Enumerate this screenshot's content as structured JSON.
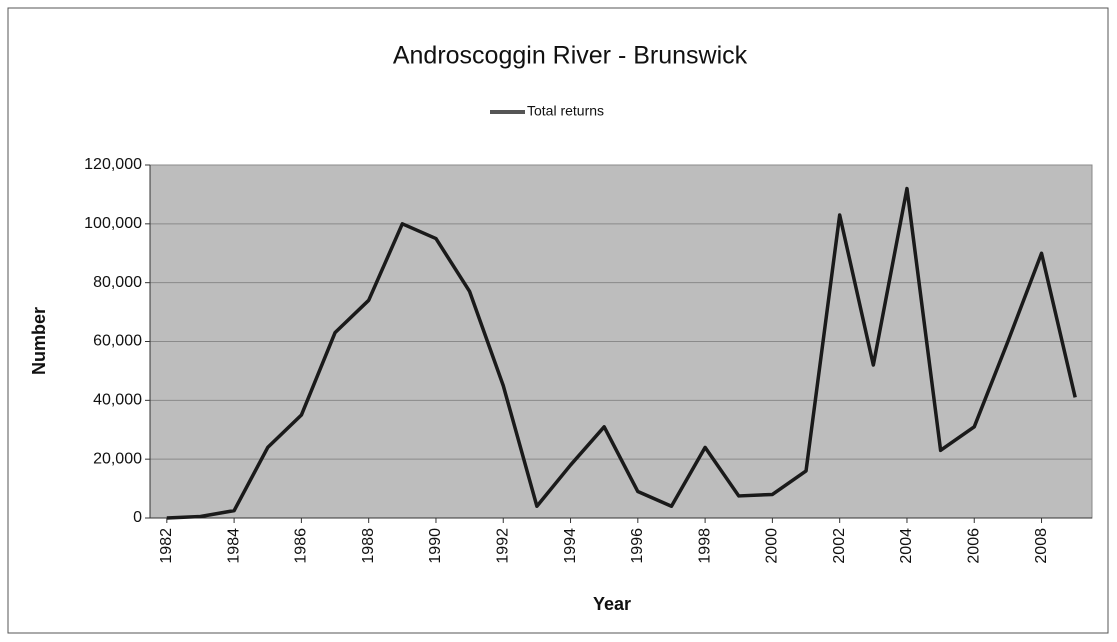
{
  "chart_data": {
    "type": "line",
    "title": "Androscoggin River - Brunswick",
    "x": [
      1982,
      1983,
      1984,
      1985,
      1986,
      1987,
      1988,
      1989,
      1990,
      1991,
      1992,
      1993,
      1994,
      1995,
      1996,
      1997,
      1998,
      1999,
      2000,
      2001,
      2002,
      2003,
      2004,
      2005,
      2006,
      2007,
      2008,
      2009
    ],
    "series": [
      {
        "name": "Total returns",
        "color": "#1a1a1a",
        "values": [
          0,
          500,
          2500,
          24000,
          35000,
          63000,
          74000,
          100000,
          95000,
          77000,
          45000,
          4000,
          18000,
          31000,
          9000,
          4000,
          24000,
          7500,
          8000,
          16000,
          103000,
          52000,
          112000,
          23000,
          31000,
          60000,
          90000,
          41000
        ]
      }
    ],
    "xlim": [
      1981.5,
      2009.5
    ],
    "xticks": [
      1982,
      1984,
      1986,
      1988,
      1990,
      1992,
      1994,
      1996,
      1998,
      2000,
      2002,
      2004,
      2006,
      2008
    ],
    "ylim": [
      0,
      120000
    ],
    "yticks": [
      0,
      {
        "value": 20000,
        "label": "20,000"
      },
      {
        "value": 40000,
        "label": "40,000"
      },
      {
        "value": 60000,
        "label": "60,000"
      },
      {
        "value": 80000,
        "label": "80,000"
      },
      {
        "value": 100000,
        "label": "100,000"
      },
      {
        "value": 120000,
        "label": "120,000"
      }
    ],
    "xlabel": "Year",
    "ylabel": "Number",
    "grid": true,
    "legend": "top"
  }
}
